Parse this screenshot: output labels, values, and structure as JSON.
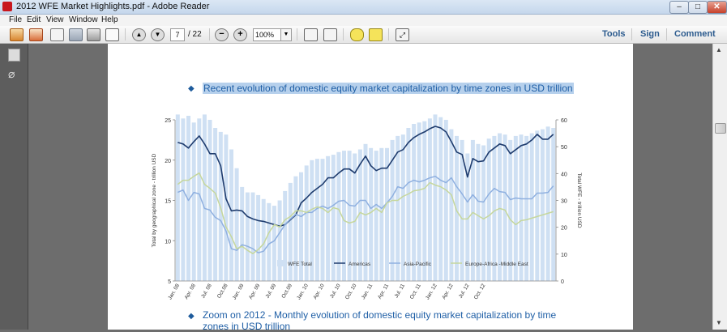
{
  "window": {
    "title": "2012 WFE Market Highlights.pdf - Adobe Reader"
  },
  "menu": [
    "File",
    "Edit",
    "View",
    "Window",
    "Help"
  ],
  "toolbar": {
    "page_current": "7",
    "page_total": "/ 22",
    "zoom": "100%",
    "tools_label": "Tools",
    "sign_label": "Sign",
    "comment_label": "Comment"
  },
  "icons": [
    "create-icon",
    "combine-icon",
    "edit-icon",
    "save-icon",
    "print-icon",
    "email-icon",
    "prev-page-icon",
    "next-page-icon",
    "zoom-out-icon",
    "zoom-in-icon",
    "fit-page-icon",
    "fit-width-icon",
    "comment-icon",
    "highlight-icon",
    "fullscreen-icon",
    "pages-panel-icon",
    "attachments-icon"
  ],
  "document": {
    "heading1": "Recent evolution of domestic equity market capitalization by time zones in USD trillion",
    "heading2": "Zoom on 2012 - Monthly evolution of domestic equity market capitalization by time zones in USD trillion"
  },
  "colors": {
    "total_bars": "#cfe0f3",
    "americas": "#1f3c6e",
    "asia_pacific": "#8fb0e0",
    "emea": "#c6d79c",
    "heading": "#1f5fa6"
  },
  "chart_data": {
    "type": "bar+line",
    "ylabel": "Total by geographical zone - trillion USD",
    "y2label": "Total WFE - trillion USD",
    "ylim": [
      5,
      25
    ],
    "y2lim": [
      0,
      60
    ],
    "yticks": [
      "25",
      "20",
      "15",
      "10",
      "5"
    ],
    "y2ticks": [
      "60",
      "50",
      "40",
      "30",
      "20",
      "10",
      "0"
    ],
    "xticks": [
      "Jan. 08",
      "Apr. 08",
      "Jul. 08",
      "Oct.08",
      "Jan. 09",
      "Apr. 09",
      "Jul. 09",
      "Oct.09",
      "Jan. 10",
      "Apr. 10",
      "Jul. 10",
      "Oct. 10",
      "Jan. 11",
      "Apr. 11",
      "Jul. 11",
      "Oct. 11",
      "Jan. 12",
      "Apr. 12",
      "Jul. 12",
      "Oct. 12"
    ],
    "grid": false,
    "legend_position": "bottom-inside",
    "series": [
      {
        "name": "WFE Total",
        "axis": "right",
        "values": [
          62.0,
          60.5,
          61.5,
          59.0,
          60.5,
          62.0,
          60.0,
          57.0,
          55.5,
          54.5,
          49.0,
          42.0,
          35.0,
          33.0,
          33.0,
          32.0,
          30.5,
          29.0,
          28.0,
          30.0,
          33.5,
          36.5,
          39.0,
          40.5,
          43.0,
          45.0,
          45.5,
          45.5,
          46.5,
          47.0,
          48.0,
          48.5,
          48.5,
          47.5,
          49.0,
          51.0,
          49.5,
          48.5,
          49.5,
          49.5,
          52.5,
          54.0,
          54.5,
          57.0,
          58.5,
          59.0,
          59.5,
          60.5,
          62.0,
          61.0,
          60.0,
          56.5,
          54.0,
          52.5,
          47.5,
          52.5,
          51.0,
          50.5,
          53.0,
          54.0,
          55.0,
          54.5,
          52.5,
          54.0,
          54.5,
          54.0,
          55.0,
          56.0,
          56.5,
          57.5,
          57.0
        ]
      },
      {
        "name": "Americas",
        "axis": "left",
        "values": [
          22.2,
          22.0,
          21.5,
          22.3,
          23.0,
          22.0,
          20.8,
          20.8,
          19.3,
          15.2,
          13.7,
          13.8,
          13.7,
          13.0,
          12.7,
          12.5,
          12.4,
          12.2,
          12.0,
          11.8,
          12.0,
          12.6,
          13.2,
          14.7,
          15.3,
          16.0,
          16.5,
          17.0,
          17.8,
          17.8,
          18.4,
          18.9,
          18.9,
          18.4,
          19.5,
          20.5,
          19.3,
          18.7,
          19.0,
          19.0,
          20.0,
          21.0,
          21.3,
          22.2,
          22.8,
          23.2,
          23.5,
          23.9,
          24.2,
          24.0,
          23.5,
          22.3,
          21.0,
          20.7,
          17.9,
          20.2,
          19.8,
          19.9,
          21.0,
          21.5,
          22.0,
          21.8,
          20.8,
          21.3,
          21.8,
          22.0,
          22.5,
          23.2,
          22.6,
          22.6,
          23.2
        ]
      },
      {
        "name": "Asia-Pacific",
        "axis": "left",
        "values": [
          16.0,
          16.3,
          15.0,
          16.0,
          15.8,
          14.0,
          13.8,
          12.9,
          12.5,
          11.2,
          9.0,
          8.8,
          9.5,
          9.3,
          9.0,
          8.5,
          8.7,
          9.6,
          10.0,
          11.0,
          12.0,
          12.7,
          13.3,
          13.0,
          13.5,
          13.5,
          14.0,
          14.3,
          14.0,
          14.4,
          14.9,
          15.0,
          14.4,
          14.3,
          15.0,
          15.0,
          14.0,
          14.5,
          14.0,
          14.7,
          15.5,
          16.7,
          16.5,
          17.2,
          17.5,
          17.3,
          17.5,
          17.8,
          18.0,
          17.5,
          17.2,
          17.8,
          16.7,
          15.8,
          14.8,
          15.7,
          14.9,
          14.8,
          15.8,
          16.5,
          16.1,
          16.0,
          15.1,
          15.3,
          15.2,
          15.2,
          15.2,
          15.9,
          15.9,
          16.0,
          16.8
        ]
      },
      {
        "name": "Europe-Africa -Middle East",
        "axis": "left",
        "values": [
          17.0,
          17.5,
          17.5,
          18.0,
          18.4,
          17.0,
          16.5,
          15.9,
          14.1,
          11.7,
          10.5,
          9.0,
          9.3,
          8.8,
          8.4,
          8.9,
          9.6,
          11.0,
          12.0,
          11.7,
          12.6,
          13.0,
          13.7,
          13.7,
          13.5,
          13.9,
          14.2,
          14.0,
          13.5,
          14.1,
          13.9,
          12.5,
          12.2,
          12.4,
          13.5,
          13.2,
          13.5,
          14.0,
          13.5,
          14.7,
          15.0,
          15.0,
          15.5,
          15.8,
          16.2,
          16.3,
          16.5,
          17.2,
          16.9,
          16.7,
          16.3,
          15.7,
          13.7,
          12.7,
          12.7,
          13.5,
          13.1,
          12.7,
          13.1,
          13.7,
          14.0,
          13.8,
          12.6,
          12.0,
          12.5,
          12.6,
          12.8,
          13.0,
          13.2,
          13.4,
          13.6
        ]
      }
    ]
  }
}
